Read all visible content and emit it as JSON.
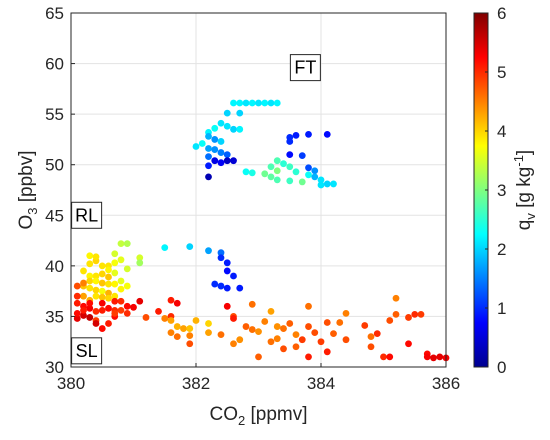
{
  "chart_data": {
    "type": "scatter",
    "title": "",
    "xlabel": {
      "base": "CO",
      "sub": "2",
      "rest": " [ppmv]"
    },
    "ylabel": {
      "base": "O",
      "sub": "3",
      "rest": " [ppbv]"
    },
    "colorbar_label": {
      "base": "q",
      "sub": "v",
      "rest": " [g kg",
      "sup": "-1",
      "end": "]"
    },
    "xlim": [
      380,
      386
    ],
    "ylim": [
      30,
      65
    ],
    "clim": [
      0,
      6
    ],
    "xticks": [
      "380",
      "382",
      "384",
      "386"
    ],
    "yticks": [
      "30",
      "35",
      "40",
      "45",
      "50",
      "55",
      "60",
      "65"
    ],
    "cticks": [
      "0",
      "1",
      "2",
      "3",
      "4",
      "5",
      "6"
    ],
    "grid": true,
    "annotations": [
      {
        "text": "FT",
        "x": 383.75,
        "y": 59.6
      },
      {
        "text": "RL",
        "x": 380.25,
        "y": 45.0
      },
      {
        "text": "SL",
        "x": 380.25,
        "y": 31.6
      }
    ],
    "points": [
      [
        382.6,
        56.1,
        2.2
      ],
      [
        382.7,
        56.1,
        2.2
      ],
      [
        382.8,
        56.1,
        2.1
      ],
      [
        382.9,
        56.1,
        2.2
      ],
      [
        383.0,
        56.1,
        2.1
      ],
      [
        383.1,
        56.1,
        2.2
      ],
      [
        383.2,
        56.1,
        2.1
      ],
      [
        383.3,
        56.1,
        2.2
      ],
      [
        382.5,
        55.1,
        2.0
      ],
      [
        382.7,
        55.1,
        2.0
      ],
      [
        382.4,
        54.1,
        2.1
      ],
      [
        382.5,
        53.8,
        2.1
      ],
      [
        382.6,
        53.5,
        2.0
      ],
      [
        382.7,
        53.5,
        2.2
      ],
      [
        382.3,
        53.6,
        2.3
      ],
      [
        382.2,
        53.2,
        2.2
      ],
      [
        382.2,
        52.8,
        1.8
      ],
      [
        382.3,
        52.5,
        1.6
      ],
      [
        382.4,
        52.3,
        2.0
      ],
      [
        382.1,
        52.1,
        2.3
      ],
      [
        382.0,
        51.8,
        2.1
      ],
      [
        382.2,
        51.6,
        1.7
      ],
      [
        382.3,
        51.5,
        1.6
      ],
      [
        382.4,
        51.2,
        1.5
      ],
      [
        382.5,
        51.0,
        1.3
      ],
      [
        382.2,
        50.8,
        1.4
      ],
      [
        382.3,
        50.4,
        0.6
      ],
      [
        382.5,
        50.4,
        0.4
      ],
      [
        382.6,
        50.4,
        0.5
      ],
      [
        382.4,
        50.2,
        0.7
      ],
      [
        382.2,
        49.9,
        0.9
      ],
      [
        382.8,
        49.3,
        2.3
      ],
      [
        382.9,
        49.2,
        2.4
      ],
      [
        382.2,
        48.8,
        0.3
      ],
      [
        383.5,
        52.7,
        1.0
      ],
      [
        383.6,
        52.9,
        0.9
      ],
      [
        383.8,
        53.0,
        0.9
      ],
      [
        384.1,
        53.0,
        0.8
      ],
      [
        383.5,
        52.3,
        1.0
      ],
      [
        383.5,
        51.0,
        0.8
      ],
      [
        383.3,
        50.4,
        2.7
      ],
      [
        383.4,
        50.1,
        2.5
      ],
      [
        383.2,
        49.8,
        2.7
      ],
      [
        383.5,
        49.8,
        2.6
      ],
      [
        383.3,
        49.4,
        3.0
      ],
      [
        383.7,
        50.9,
        1.1
      ],
      [
        383.8,
        49.7,
        1.2
      ],
      [
        383.6,
        49.3,
        2.5
      ],
      [
        383.8,
        49.0,
        2.3
      ],
      [
        383.9,
        49.4,
        1.6
      ],
      [
        383.9,
        48.8,
        1.8
      ],
      [
        383.2,
        48.8,
        2.8
      ],
      [
        383.3,
        48.5,
        2.7
      ],
      [
        383.5,
        48.4,
        2.6
      ],
      [
        383.7,
        48.3,
        2.9
      ],
      [
        383.1,
        49.1,
        2.9
      ],
      [
        384.0,
        48.5,
        2.1
      ],
      [
        384.1,
        48.1,
        2.0
      ],
      [
        384.2,
        48.1,
        2.1
      ],
      [
        384.0,
        48.0,
        2.1
      ],
      [
        380.8,
        42.2,
        3.4
      ],
      [
        380.9,
        42.2,
        3.3
      ],
      [
        381.5,
        41.8,
        2.2
      ],
      [
        381.9,
        41.9,
        2.0
      ],
      [
        382.2,
        41.5,
        1.7
      ],
      [
        382.4,
        41.3,
        1.4
      ],
      [
        382.4,
        40.8,
        1.0
      ],
      [
        382.5,
        40.3,
        0.9
      ],
      [
        382.5,
        39.5,
        0.8
      ],
      [
        382.6,
        39.0,
        0.9
      ],
      [
        382.4,
        38.0,
        1.0
      ],
      [
        382.5,
        37.8,
        0.9
      ],
      [
        382.7,
        37.8,
        0.9
      ],
      [
        382.3,
        38.2,
        1.0
      ],
      [
        380.7,
        41.2,
        3.5
      ],
      [
        380.8,
        40.6,
        3.6
      ],
      [
        380.7,
        40.3,
        3.7
      ],
      [
        381.1,
        40.8,
        3.5
      ],
      [
        381.1,
        40.3,
        3.2
      ],
      [
        380.3,
        40.2,
        3.9
      ],
      [
        380.4,
        40.5,
        4.0
      ],
      [
        380.5,
        40.0,
        3.9
      ],
      [
        380.6,
        40.0,
        3.9
      ],
      [
        380.6,
        39.6,
        3.8
      ],
      [
        380.2,
        39.5,
        3.9
      ],
      [
        380.3,
        39.0,
        3.8
      ],
      [
        380.4,
        39.0,
        3.9
      ],
      [
        380.5,
        39.2,
        4.0
      ],
      [
        380.6,
        38.9,
        4.1
      ],
      [
        380.3,
        38.5,
        4.0
      ],
      [
        380.4,
        38.5,
        3.8
      ],
      [
        380.5,
        38.3,
        4.1
      ],
      [
        380.6,
        38.2,
        3.9
      ],
      [
        380.7,
        38.2,
        3.8
      ],
      [
        380.8,
        38.5,
        3.6
      ],
      [
        380.2,
        38.0,
        4.1
      ],
      [
        380.3,
        37.8,
        3.9
      ],
      [
        380.4,
        37.6,
        4.0
      ],
      [
        380.5,
        37.5,
        3.7
      ],
      [
        380.6,
        37.3,
        4.2
      ],
      [
        380.2,
        37.0,
        4.3
      ],
      [
        380.4,
        37.0,
        3.9
      ],
      [
        380.5,
        36.9,
        4.1
      ],
      [
        380.6,
        36.8,
        4.0
      ],
      [
        380.3,
        36.6,
        4.2
      ],
      [
        380.7,
        37.0,
        3.9
      ],
      [
        380.8,
        37.7,
        3.8
      ],
      [
        380.9,
        38.0,
        3.7
      ],
      [
        380.7,
        39.3,
        3.6
      ],
      [
        380.9,
        39.7,
        3.5
      ],
      [
        380.3,
        41.0,
        3.8
      ],
      [
        380.4,
        40.9,
        3.9
      ],
      [
        380.1,
        38.0,
        4.8
      ],
      [
        380.2,
        38.3,
        4.5
      ],
      [
        380.1,
        37.0,
        5.0
      ],
      [
        380.1,
        36.3,
        5.1
      ],
      [
        380.2,
        36.0,
        5.2
      ],
      [
        380.3,
        35.8,
        5.3
      ],
      [
        380.4,
        35.5,
        5.0
      ],
      [
        380.5,
        35.6,
        5.1
      ],
      [
        380.6,
        35.8,
        5.2
      ],
      [
        380.7,
        35.6,
        5.0
      ],
      [
        380.8,
        35.6,
        4.9
      ],
      [
        380.9,
        36.0,
        5.2
      ],
      [
        380.8,
        36.5,
        5.0
      ],
      [
        380.7,
        36.5,
        5.1
      ],
      [
        380.5,
        36.3,
        5.3
      ],
      [
        380.3,
        36.3,
        5.2
      ],
      [
        380.2,
        35.1,
        5.5
      ],
      [
        380.3,
        34.9,
        5.6
      ],
      [
        380.1,
        34.8,
        5.4
      ],
      [
        380.4,
        34.6,
        4.9
      ],
      [
        380.4,
        34.3,
        5.5
      ],
      [
        380.6,
        34.3,
        5.1
      ],
      [
        380.7,
        35.0,
        5.2
      ],
      [
        380.9,
        35.3,
        5.0
      ],
      [
        381.0,
        35.9,
        5.3
      ],
      [
        381.1,
        36.5,
        5.4
      ],
      [
        380.5,
        33.8,
        5.2
      ],
      [
        380.7,
        35.3,
        4.9
      ],
      [
        380.1,
        35.3,
        5.2
      ],
      [
        380.2,
        35.6,
        5.1
      ],
      [
        381.2,
        34.9,
        4.8
      ],
      [
        381.6,
        36.6,
        5.1
      ],
      [
        381.7,
        36.3,
        5.3
      ],
      [
        381.4,
        35.5,
        5.1
      ],
      [
        381.6,
        35.0,
        5.0
      ],
      [
        381.6,
        33.4,
        4.5
      ],
      [
        381.6,
        34.6,
        4.3
      ],
      [
        381.5,
        34.8,
        4.5
      ],
      [
        381.7,
        34.0,
        4.2
      ],
      [
        381.8,
        33.8,
        4.3
      ],
      [
        381.9,
        33.8,
        4.1
      ],
      [
        381.9,
        33.1,
        4.5
      ],
      [
        381.7,
        33.0,
        4.6
      ],
      [
        381.9,
        32.3,
        4.8
      ],
      [
        382.0,
        34.6,
        4.2
      ],
      [
        382.2,
        34.3,
        4.0
      ],
      [
        382.2,
        33.4,
        4.3
      ],
      [
        382.4,
        33.2,
        4.6
      ],
      [
        382.5,
        36.0,
        5.3
      ],
      [
        382.6,
        35.0,
        4.8
      ],
      [
        382.6,
        34.8,
        5.1
      ],
      [
        382.6,
        32.3,
        4.5
      ],
      [
        382.7,
        32.7,
        4.4
      ],
      [
        382.8,
        34.0,
        4.7
      ],
      [
        382.9,
        33.7,
        4.6
      ],
      [
        382.9,
        36.2,
        4.6
      ],
      [
        383.0,
        33.5,
        4.4
      ],
      [
        383.0,
        31.0,
        4.7
      ],
      [
        383.1,
        34.5,
        4.5
      ],
      [
        383.2,
        35.5,
        4.3
      ],
      [
        383.2,
        32.5,
        4.6
      ],
      [
        383.3,
        34.0,
        4.4
      ],
      [
        383.3,
        32.8,
        4.5
      ],
      [
        383.4,
        33.8,
        4.6
      ],
      [
        383.4,
        31.8,
        4.8
      ],
      [
        383.5,
        34.3,
        4.7
      ],
      [
        383.6,
        33.2,
        4.5
      ],
      [
        383.6,
        32.0,
        4.7
      ],
      [
        383.7,
        32.7,
        4.9
      ],
      [
        383.8,
        34.0,
        4.8
      ],
      [
        383.8,
        31.0,
        5.1
      ],
      [
        383.8,
        36.0,
        4.6
      ],
      [
        383.9,
        33.4,
        4.8
      ],
      [
        384.0,
        32.5,
        4.9
      ],
      [
        384.1,
        34.4,
        4.8
      ],
      [
        384.1,
        31.5,
        5.1
      ],
      [
        384.2,
        33.3,
        4.7
      ],
      [
        384.3,
        34.4,
        4.6
      ],
      [
        384.4,
        32.7,
        4.8
      ],
      [
        384.4,
        35.3,
        4.5
      ],
      [
        384.7,
        34.1,
        4.9
      ],
      [
        384.8,
        33.0,
        4.6
      ],
      [
        384.8,
        32.0,
        4.8
      ],
      [
        384.9,
        33.3,
        5.0
      ],
      [
        385.0,
        31.0,
        5.0
      ],
      [
        385.1,
        31.0,
        5.2
      ],
      [
        385.1,
        34.6,
        4.8
      ],
      [
        385.2,
        36.8,
        4.5
      ],
      [
        385.2,
        35.2,
        4.7
      ],
      [
        385.4,
        34.9,
        4.9
      ],
      [
        385.5,
        35.2,
        5.0
      ],
      [
        385.4,
        32.3,
        5.2
      ],
      [
        385.7,
        31.3,
        5.2
      ],
      [
        385.7,
        31.0,
        5.3
      ],
      [
        385.8,
        30.9,
        5.4
      ],
      [
        385.9,
        31.0,
        5.4
      ],
      [
        386.0,
        30.9,
        5.3
      ],
      [
        385.6,
        35.2,
        4.9
      ]
    ]
  }
}
